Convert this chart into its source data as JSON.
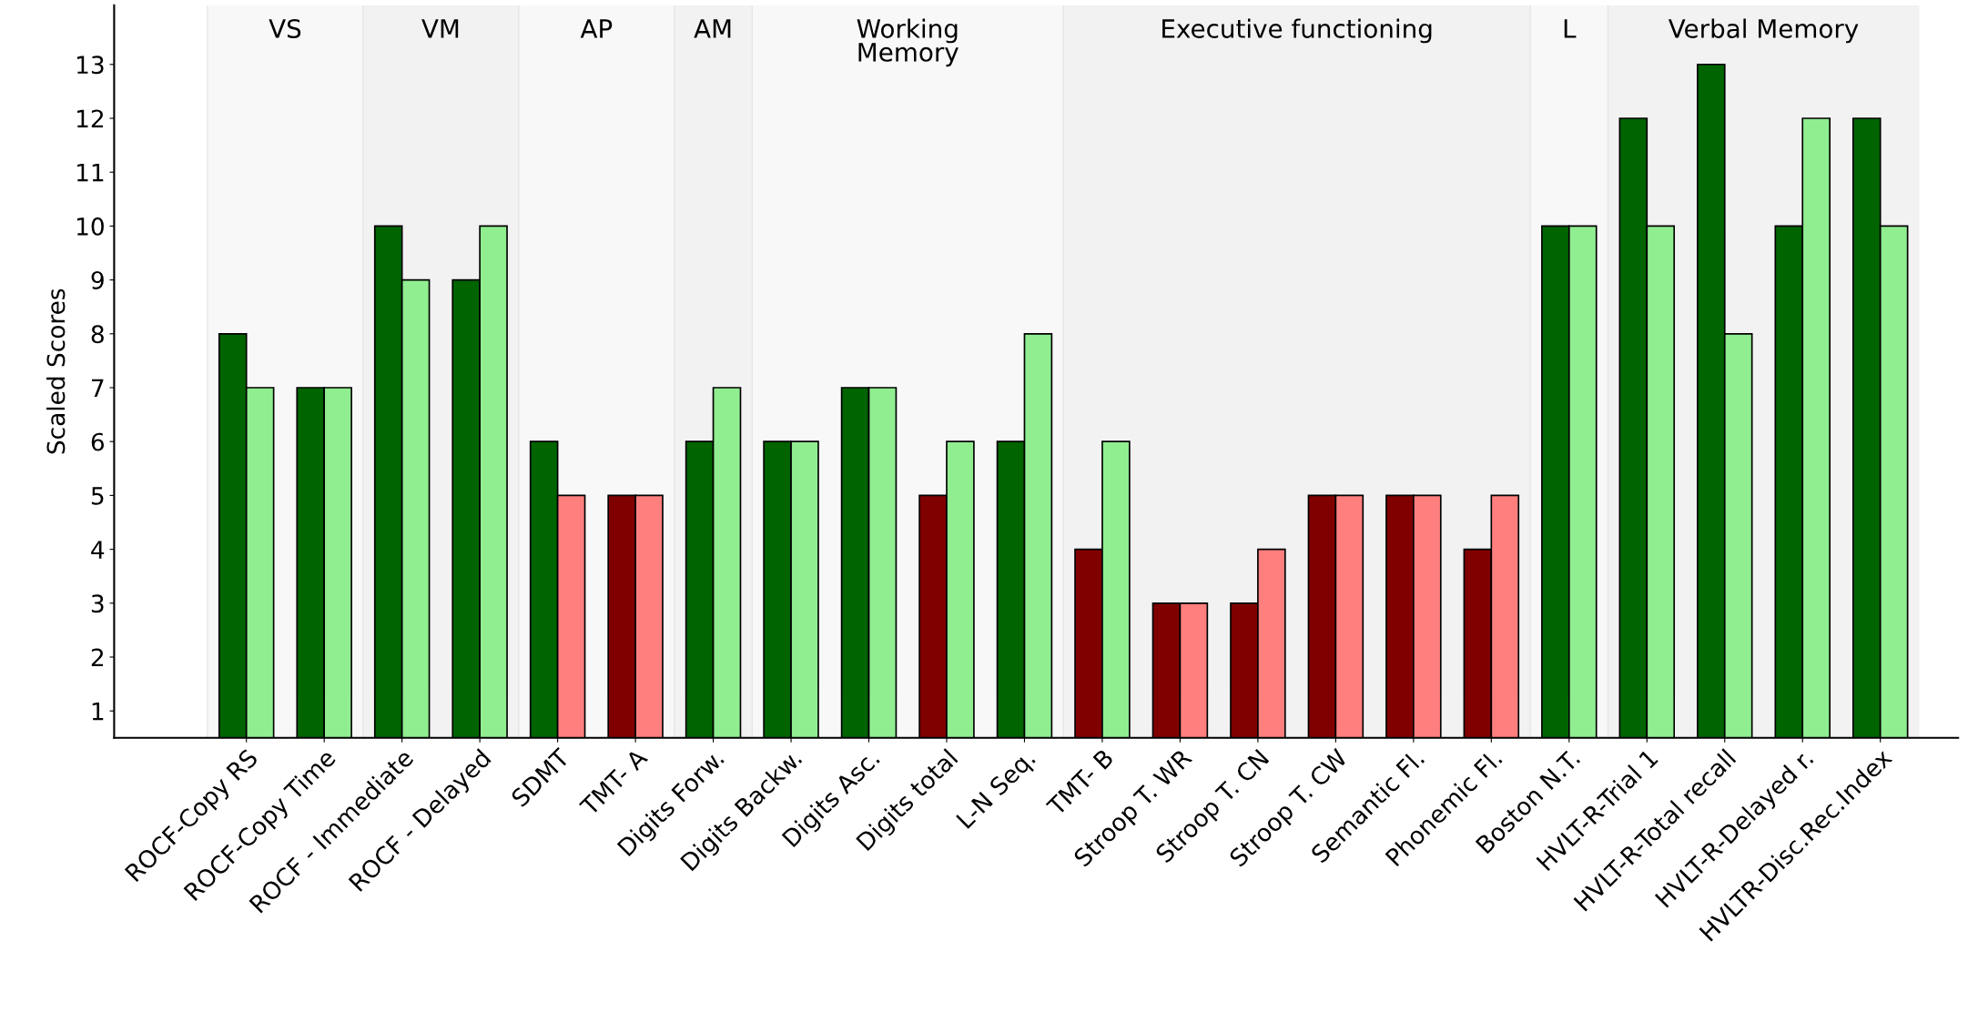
{
  "chart_data": {
    "type": "bar",
    "ylabel": "Scaled Scores",
    "categories": [
      "ROCF-Copy RS",
      "ROCF-Copy Time",
      "ROCF - Immediate",
      "ROCF - Delayed",
      "SDMT",
      "TMT- A",
      "Digits Forw.",
      "Digits Backw.",
      "Digits Asc.",
      "Digits total",
      "L-N Seq.",
      "TMT- B",
      "Stroop T. WR",
      "Stroop T. CN",
      "Stroop T. CW",
      "Semantic Fl.",
      "Phonemic Fl.",
      "Boston N.T.",
      "HVLT-R-Trial 1",
      "HVLT-R-Total recall",
      "HVLT-R-Delayed r.",
      "HVLTR-Disc.Rec.Index"
    ],
    "series": [
      {
        "values": [
          8,
          7,
          10,
          9,
          6,
          5,
          6,
          6,
          7,
          5,
          6,
          4,
          3,
          3,
          5,
          5,
          4,
          10,
          12,
          13,
          10,
          12
        ],
        "colors": [
          "#006400",
          "#006400",
          "#006400",
          "#006400",
          "#006400",
          "#800000",
          "#006400",
          "#006400",
          "#006400",
          "#800000",
          "#006400",
          "#800000",
          "#800000",
          "#800000",
          "#800000",
          "#800000",
          "#800000",
          "#006400",
          "#006400",
          "#006400",
          "#006400",
          "#006400"
        ]
      },
      {
        "values": [
          7,
          7,
          9,
          10,
          5,
          5,
          7,
          6,
          7,
          6,
          8,
          6,
          3,
          4,
          5,
          5,
          5,
          10,
          10,
          8,
          12,
          10
        ],
        "colors": [
          "#90ee90",
          "#90ee90",
          "#90ee90",
          "#90ee90",
          "#ff7f7f",
          "#ff7f7f",
          "#90ee90",
          "#90ee90",
          "#90ee90",
          "#90ee90",
          "#90ee90",
          "#90ee90",
          "#ff7f7f",
          "#ff7f7f",
          "#ff7f7f",
          "#ff7f7f",
          "#ff7f7f",
          "#90ee90",
          "#90ee90",
          "#90ee90",
          "#90ee90",
          "#90ee90"
        ]
      }
    ],
    "ylim": [
      0.5,
      14.1
    ],
    "yticks": [
      1,
      2,
      3,
      4,
      5,
      6,
      7,
      8,
      9,
      10,
      11,
      12,
      13
    ],
    "bands": [
      {
        "axis": "x",
        "from": "ROCF-Copy RS",
        "to": "ROCF-Copy Time",
        "label": "VS",
        "color": "#f8f8f8"
      },
      {
        "axis": "x",
        "from": "ROCF - Immediate",
        "to": "ROCF - Delayed",
        "label": "VM",
        "color": "#f2f2f2"
      },
      {
        "axis": "x",
        "from": "SDMT",
        "to": "TMT- A",
        "label": "AP",
        "color": "#f8f8f8"
      },
      {
        "axis": "x",
        "from": "Digits Forw.",
        "to": "Digits Forw.",
        "label": "AM",
        "color": "#f2f2f2"
      },
      {
        "axis": "x",
        "from": "Digits Backw.",
        "to": "L-N Seq.",
        "label": "Working\nMemory",
        "color": "#f8f8f8"
      },
      {
        "axis": "x",
        "from": "TMT- B",
        "to": "Phonemic Fl.",
        "label": "Executive functioning",
        "color": "#f2f2f2"
      },
      {
        "axis": "x",
        "from": "Boston N.T.",
        "to": "Boston N.T.",
        "label": "L",
        "color": "#f8f8f8"
      },
      {
        "axis": "x",
        "from": "HVLT-R-Trial 1",
        "to": "HVLTR-Disc.Rec.Index",
        "label": "Verbal Memory",
        "color": "#f2f2f2"
      }
    ],
    "grid": false
  }
}
